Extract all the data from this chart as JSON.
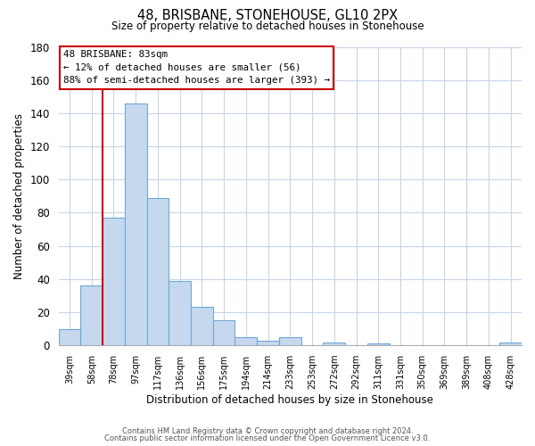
{
  "title": "48, BRISBANE, STONEHOUSE, GL10 2PX",
  "subtitle": "Size of property relative to detached houses in Stonehouse",
  "xlabel": "Distribution of detached houses by size in Stonehouse",
  "ylabel": "Number of detached properties",
  "bin_labels": [
    "39sqm",
    "58sqm",
    "78sqm",
    "97sqm",
    "117sqm",
    "136sqm",
    "156sqm",
    "175sqm",
    "194sqm",
    "214sqm",
    "233sqm",
    "253sqm",
    "272sqm",
    "292sqm",
    "311sqm",
    "331sqm",
    "350sqm",
    "369sqm",
    "389sqm",
    "408sqm",
    "428sqm"
  ],
  "bar_values": [
    10,
    36,
    77,
    146,
    89,
    39,
    23,
    15,
    5,
    3,
    5,
    0,
    2,
    0,
    1,
    0,
    0,
    0,
    0,
    0,
    2
  ],
  "bar_color": "#c5d8ee",
  "bar_edge_color": "#6fa8d4",
  "vline_x": 2,
  "vline_color": "#cc0000",
  "ylim": [
    0,
    180
  ],
  "yticks": [
    0,
    20,
    40,
    60,
    80,
    100,
    120,
    140,
    160,
    180
  ],
  "annotation_title": "48 BRISBANE: 83sqm",
  "annotation_line1": "← 12% of detached houses are smaller (56)",
  "annotation_line2": "88% of semi-detached houses are larger (393) →",
  "footer1": "Contains HM Land Registry data © Crown copyright and database right 2024.",
  "footer2": "Contains public sector information licensed under the Open Government Licence v3.0."
}
